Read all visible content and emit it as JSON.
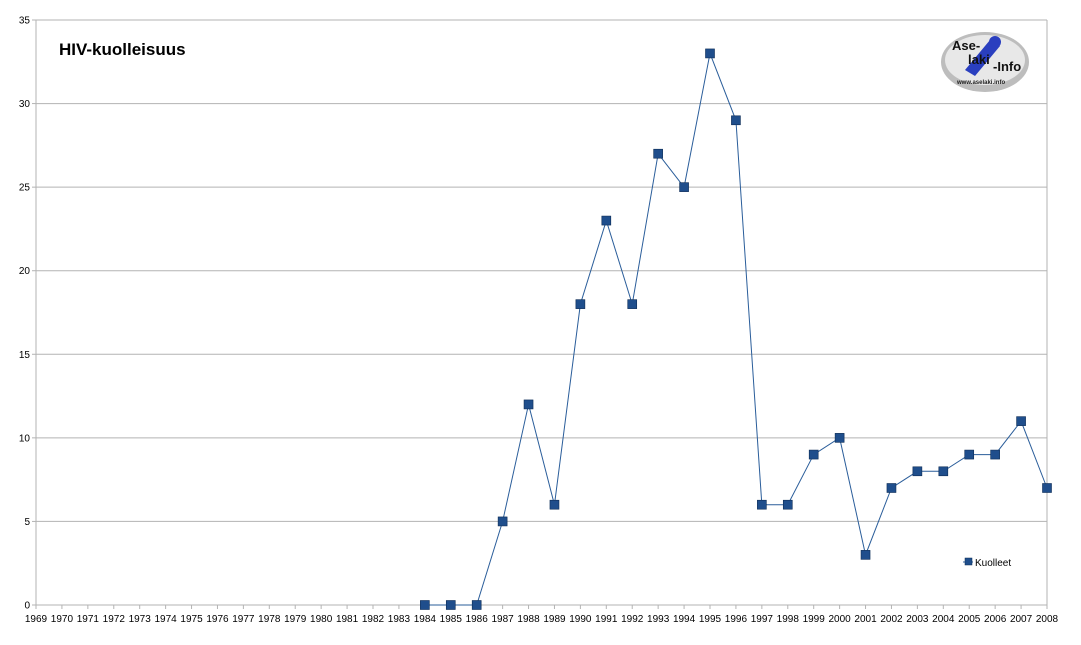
{
  "chart_data": {
    "type": "line",
    "title": "HIV-kuolleisuus",
    "x": [
      "1969",
      "1970",
      "1971",
      "1972",
      "1973",
      "1974",
      "1975",
      "1976",
      "1977",
      "1978",
      "1979",
      "1980",
      "1981",
      "1982",
      "1983",
      "1984",
      "1985",
      "1986",
      "1987",
      "1988",
      "1989",
      "1990",
      "1991",
      "1992",
      "1993",
      "1994",
      "1995",
      "1996",
      "1997",
      "1998",
      "1999",
      "2000",
      "2001",
      "2002",
      "2003",
      "2004",
      "2005",
      "2006",
      "2007",
      "2008"
    ],
    "series": [
      {
        "name": "Kuolleet",
        "color": "#1f4e8c",
        "line_color": "#2a5d9a",
        "values": [
          null,
          null,
          null,
          null,
          null,
          null,
          null,
          null,
          null,
          null,
          null,
          null,
          null,
          null,
          null,
          0,
          0,
          0,
          5,
          12,
          6,
          18,
          23,
          18,
          27,
          25,
          33,
          29,
          6,
          6,
          9,
          10,
          3,
          7,
          8,
          8,
          9,
          9,
          11,
          7
        ]
      }
    ],
    "ylim": [
      0,
      35
    ],
    "yticks": [
      0,
      5,
      10,
      15,
      20,
      25,
      30,
      35
    ],
    "grid": true,
    "legend": "right",
    "xlabel": "",
    "ylabel": ""
  },
  "logo": {
    "line1": "Ase-",
    "line2": "laki",
    "line3": "-Info",
    "url": "www.aselaki.info",
    "icon": "aselaki-logo"
  }
}
